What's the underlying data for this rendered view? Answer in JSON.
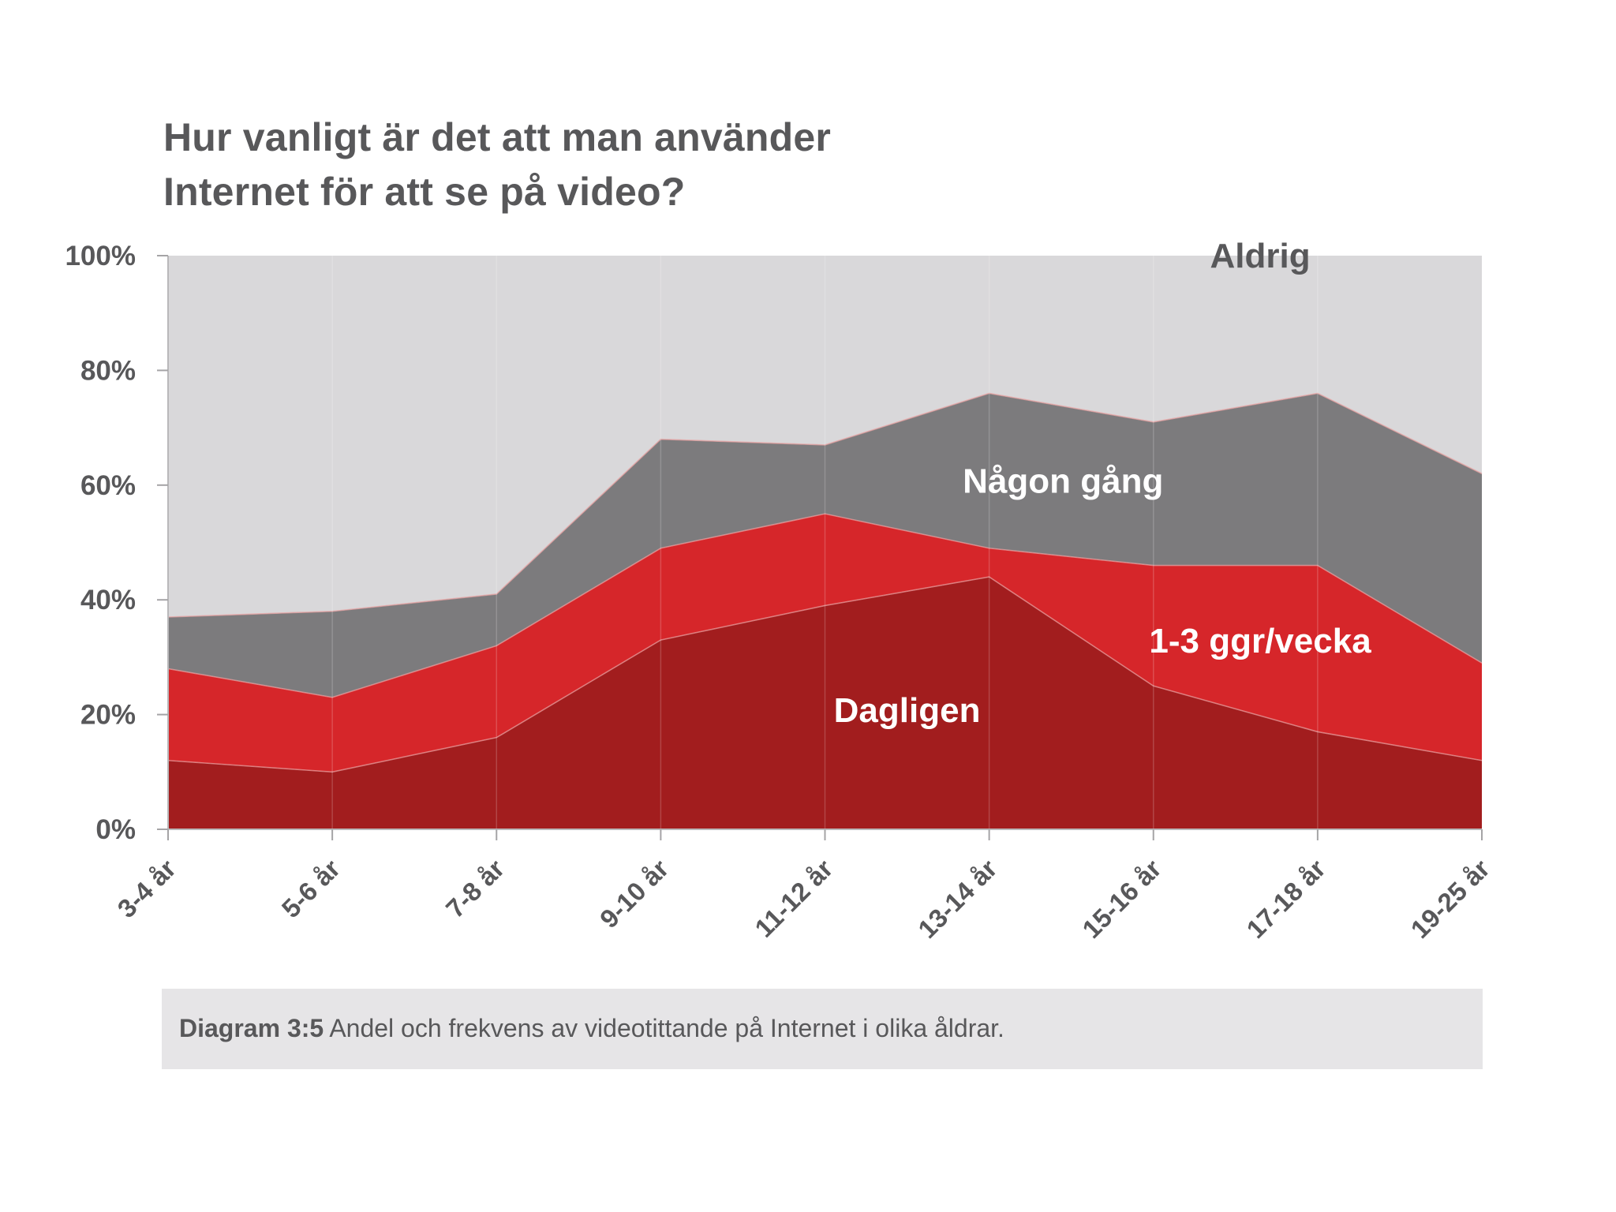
{
  "chart_data": {
    "type": "area",
    "stacked": true,
    "title": "Hur vanligt är det att man använder Internet för att se på video?",
    "title_lines": [
      "Hur vanligt är det att man använder",
      "Internet för att se på video?"
    ],
    "categories": [
      "3-4 år",
      "5-6 år",
      "7-8 år",
      "9-10 år",
      "11-12 år",
      "13-14 år",
      "15-16 år",
      "17-18 år",
      "19-25 år"
    ],
    "series": [
      {
        "name": "Dagligen",
        "color": "#a21d1e",
        "values": [
          12,
          10,
          16,
          33,
          39,
          44,
          25,
          17,
          12
        ]
      },
      {
        "name": "1-3 ggr/vecka",
        "color": "#d6262a",
        "values": [
          16,
          13,
          16,
          16,
          16,
          5,
          21,
          29,
          17
        ]
      },
      {
        "name": "Någon gång",
        "color": "#7c7b7d",
        "values": [
          9,
          15,
          9,
          19,
          12,
          27,
          25,
          30,
          33
        ]
      },
      {
        "name": "Aldrig",
        "color": "#d9d8da",
        "values": [
          63,
          62,
          59,
          32,
          33,
          24,
          29,
          24,
          38
        ]
      }
    ],
    "yticks": [
      "0%",
      "20%",
      "40%",
      "60%",
      "80%",
      "100%"
    ],
    "ylim": [
      0,
      100
    ],
    "xlabel": "",
    "ylabel": ""
  },
  "caption": {
    "label": "Diagram 3:5",
    "text": " Andel och frekvens av videotittande på Internet i olika åldrar."
  }
}
